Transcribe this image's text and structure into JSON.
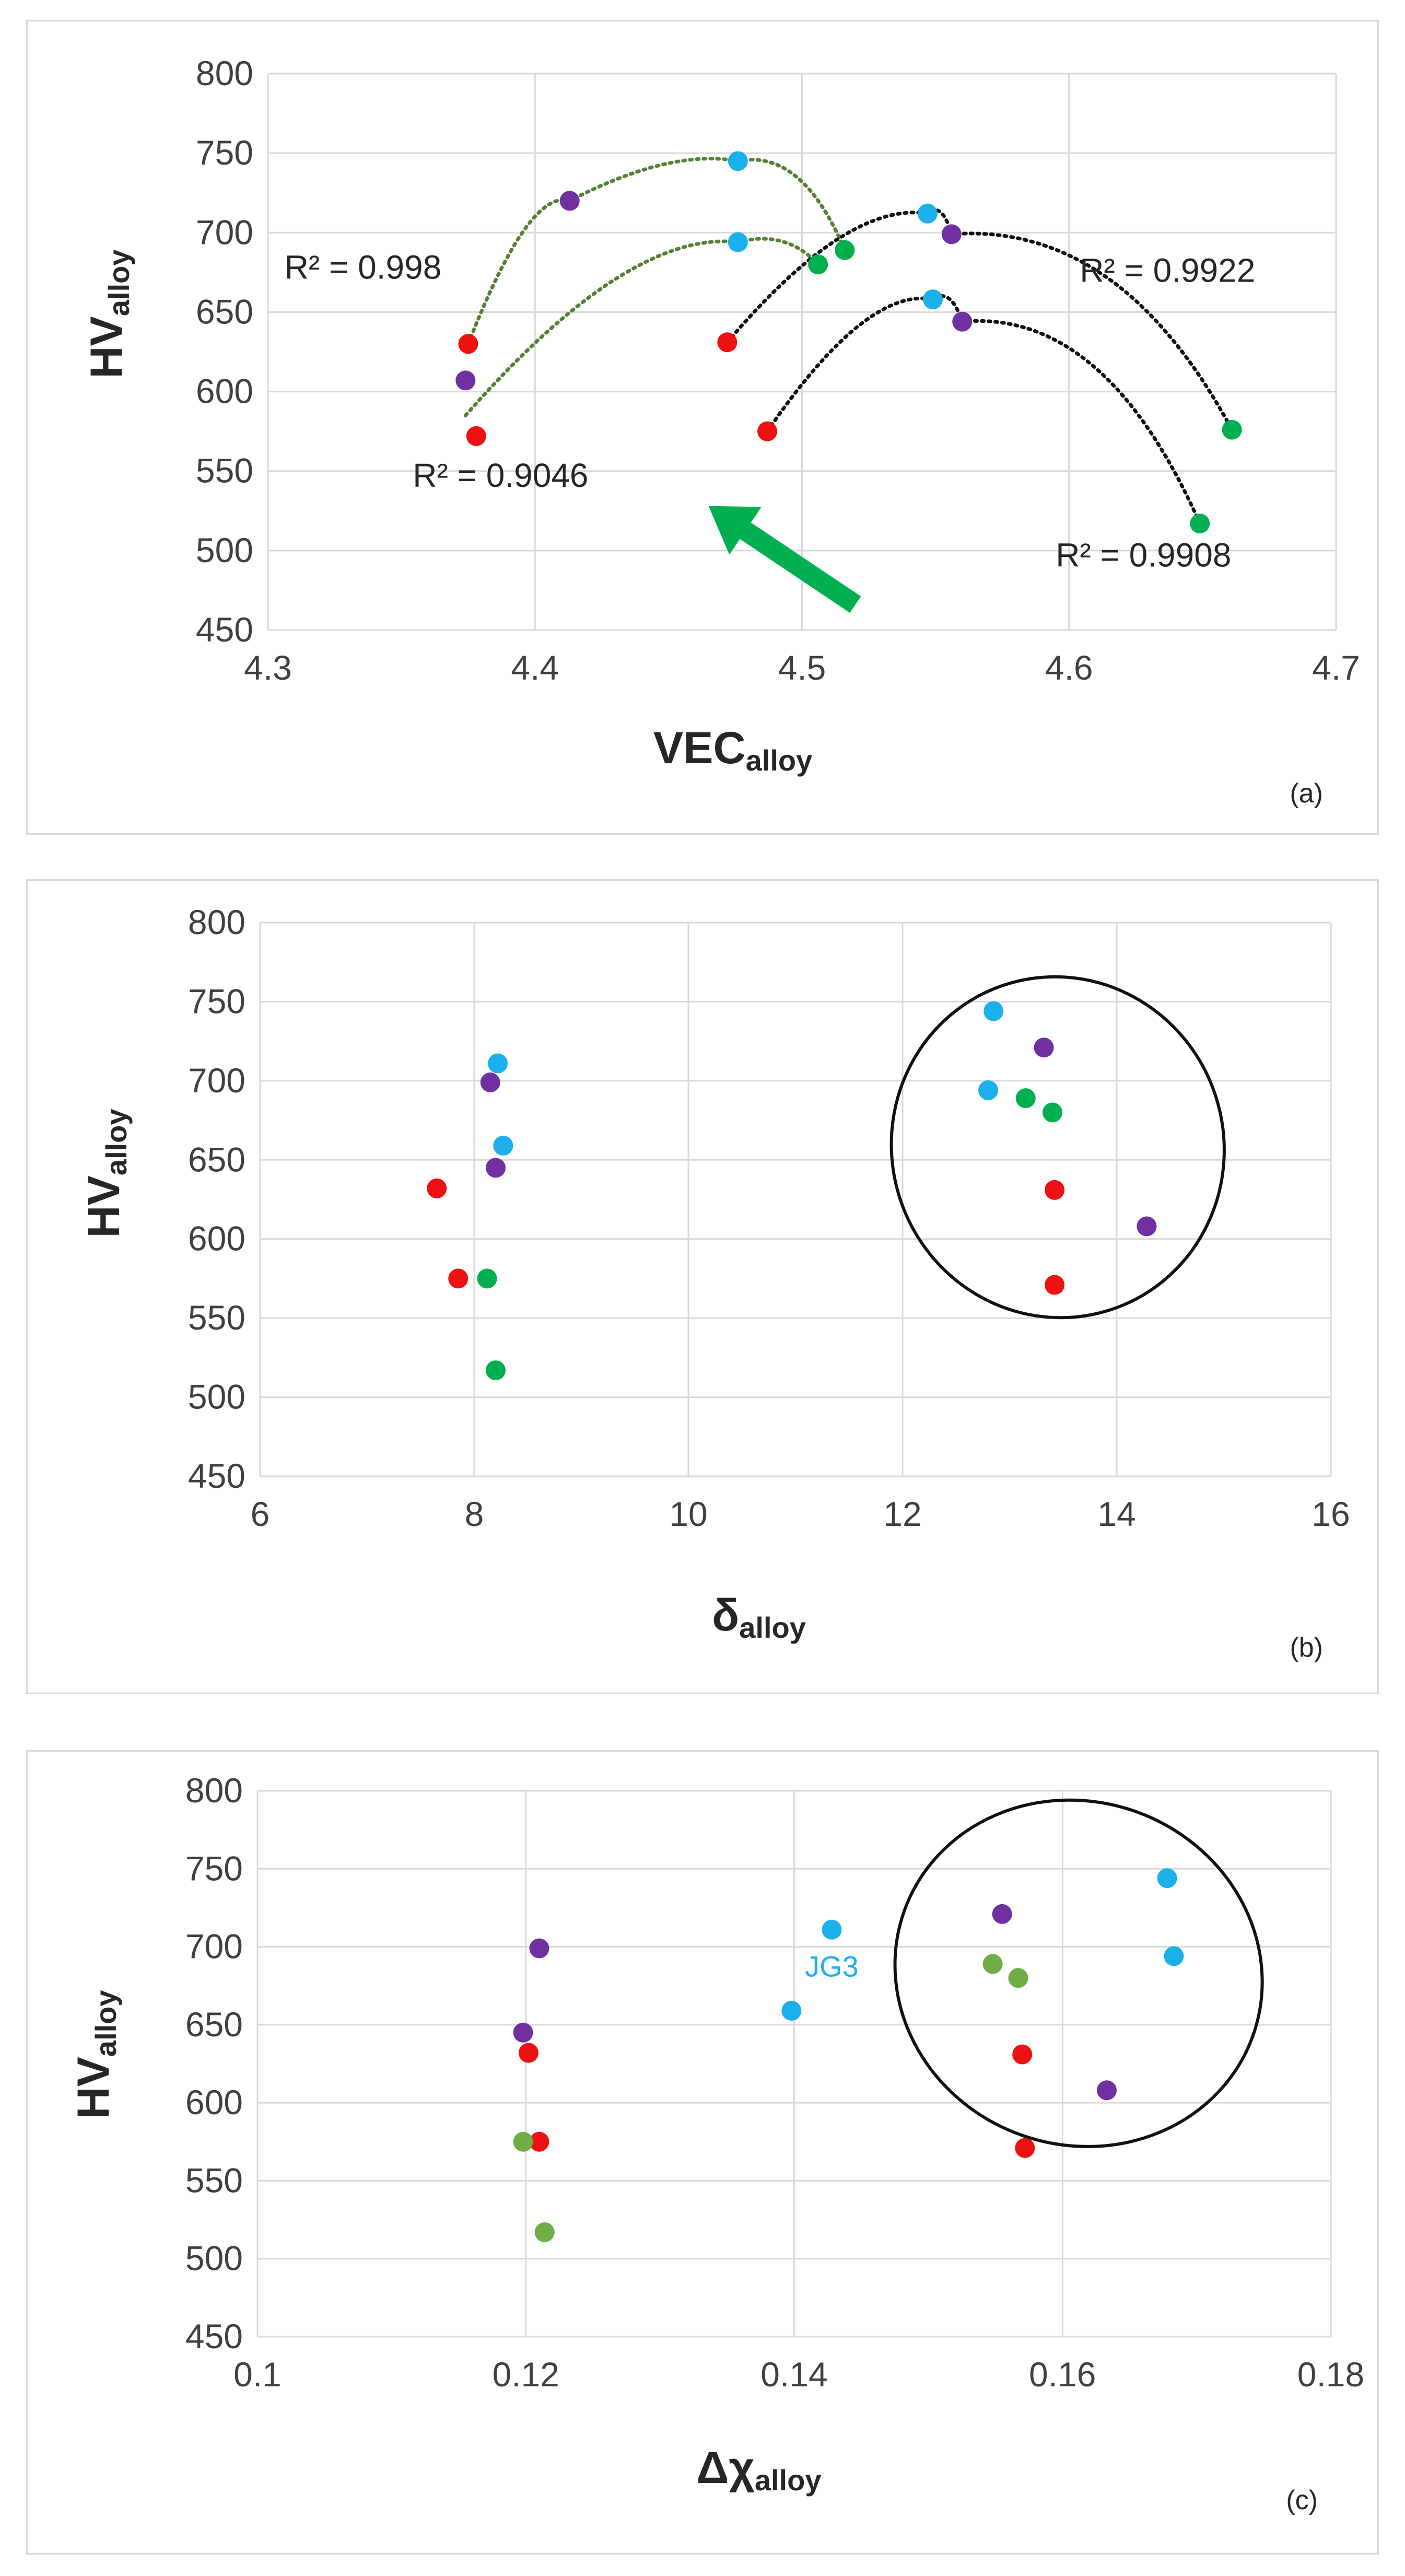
{
  "colors": {
    "red": "#ee1111",
    "purple": "#7030a0",
    "blue": "#1cb0ea",
    "green": "#00b050",
    "lightgreen": "#70ad47",
    "trend_green": "#548235",
    "trend_black": "#111111",
    "grid": "#d9d9d9",
    "arrow": "#00b050",
    "ellipse": "#111111"
  },
  "chart_data": [
    {
      "type": "scatter",
      "panel_label": "(a)",
      "xlabel": "VEC",
      "xlabel_sub": "alloy",
      "ylabel": "HV",
      "ylabel_sub": "alloy",
      "xlim": [
        4.3,
        4.7
      ],
      "ylim": [
        450,
        800
      ],
      "xticks": [
        "4.3",
        "4.4",
        "4.5",
        "4.6",
        "4.7"
      ],
      "yticks": [
        "450",
        "500",
        "550",
        "600",
        "650",
        "700",
        "750",
        "800"
      ],
      "grid": "vertical and horizontal",
      "points": [
        {
          "x": 4.375,
          "y": 630,
          "color": "red"
        },
        {
          "x": 4.378,
          "y": 572,
          "color": "red"
        },
        {
          "x": 4.472,
          "y": 631,
          "color": "red"
        },
        {
          "x": 4.487,
          "y": 575,
          "color": "red"
        },
        {
          "x": 4.374,
          "y": 607,
          "color": "purple"
        },
        {
          "x": 4.413,
          "y": 720,
          "color": "purple"
        },
        {
          "x": 4.556,
          "y": 699,
          "color": "purple"
        },
        {
          "x": 4.56,
          "y": 644,
          "color": "purple"
        },
        {
          "x": 4.476,
          "y": 745,
          "color": "blue"
        },
        {
          "x": 4.476,
          "y": 694,
          "color": "blue"
        },
        {
          "x": 4.547,
          "y": 712,
          "color": "blue"
        },
        {
          "x": 4.549,
          "y": 658,
          "color": "blue"
        },
        {
          "x": 4.506,
          "y": 680,
          "color": "green"
        },
        {
          "x": 4.516,
          "y": 689,
          "color": "green"
        },
        {
          "x": 4.661,
          "y": 576,
          "color": "green"
        },
        {
          "x": 4.649,
          "y": 517,
          "color": "green"
        }
      ],
      "trendlines": [
        {
          "color": "trend_green",
          "label": "R² = 0.998",
          "points": [
            [
              4.375,
              630
            ],
            [
              4.413,
              720
            ],
            [
              4.476,
              745
            ],
            [
              4.516,
              689
            ]
          ]
        },
        {
          "color": "trend_green",
          "label": "R² = 0.9046",
          "points": [
            [
              4.374,
              585
            ],
            [
              4.476,
              694
            ],
            [
              4.506,
              680
            ]
          ]
        },
        {
          "color": "trend_black",
          "label": "R² = 0.9922",
          "points": [
            [
              4.472,
              631
            ],
            [
              4.547,
              712
            ],
            [
              4.556,
              699
            ],
            [
              4.661,
              576
            ]
          ]
        },
        {
          "color": "trend_black",
          "label": "R² = 0.9908",
          "points": [
            [
              4.487,
              575
            ],
            [
              4.549,
              658
            ],
            [
              4.56,
              644
            ],
            [
              4.649,
              517
            ]
          ]
        }
      ],
      "arrow": {
        "from": [
          4.52,
          466
        ],
        "to": [
          4.465,
          528
        ],
        "color": "arrow"
      }
    },
    {
      "type": "scatter",
      "panel_label": "(b)",
      "xlabel": "δ",
      "xlabel_sub": "alloy",
      "ylabel": "HV",
      "ylabel_sub": "alloy",
      "xlim": [
        6,
        16
      ],
      "ylim": [
        450,
        800
      ],
      "xticks": [
        "6",
        "8",
        "10",
        "12",
        "14",
        "16"
      ],
      "yticks": [
        "450",
        "500",
        "550",
        "600",
        "650",
        "700",
        "750",
        "800"
      ],
      "grid": "vertical and horizontal",
      "points": [
        {
          "x": 7.65,
          "y": 632,
          "color": "red"
        },
        {
          "x": 7.85,
          "y": 575,
          "color": "red"
        },
        {
          "x": 13.42,
          "y": 631,
          "color": "red"
        },
        {
          "x": 13.42,
          "y": 571,
          "color": "red"
        },
        {
          "x": 8.15,
          "y": 699,
          "color": "purple"
        },
        {
          "x": 8.2,
          "y": 645,
          "color": "purple"
        },
        {
          "x": 13.32,
          "y": 721,
          "color": "purple"
        },
        {
          "x": 14.28,
          "y": 608,
          "color": "purple"
        },
        {
          "x": 8.22,
          "y": 711,
          "color": "blue"
        },
        {
          "x": 8.27,
          "y": 659,
          "color": "blue"
        },
        {
          "x": 12.85,
          "y": 744,
          "color": "blue"
        },
        {
          "x": 12.8,
          "y": 694,
          "color": "blue"
        },
        {
          "x": 8.12,
          "y": 575,
          "color": "green"
        },
        {
          "x": 8.2,
          "y": 517,
          "color": "green"
        },
        {
          "x": 13.15,
          "y": 689,
          "color": "green"
        },
        {
          "x": 13.4,
          "y": 680,
          "color": "green"
        }
      ],
      "ellipse": {
        "cx": 13.45,
        "cy": 658,
        "rx": 1.55,
        "ry": 108,
        "rotate_deg": -18
      }
    },
    {
      "type": "scatter",
      "panel_label": "(c)",
      "xlabel": "Δχ",
      "xlabel_sub": "alloy",
      "ylabel": "HV",
      "ylabel_sub": "alloy",
      "xlim": [
        0.1,
        0.18
      ],
      "ylim": [
        450,
        800
      ],
      "xticks": [
        "0.1",
        "0.12",
        "0.14",
        "0.16",
        "0.18"
      ],
      "yticks": [
        "450",
        "500",
        "550",
        "600",
        "650",
        "700",
        "750",
        "800"
      ],
      "grid": "vertical and horizontal",
      "points": [
        {
          "x": 0.1202,
          "y": 632,
          "color": "red"
        },
        {
          "x": 0.121,
          "y": 575,
          "color": "red"
        },
        {
          "x": 0.157,
          "y": 631,
          "color": "red"
        },
        {
          "x": 0.1572,
          "y": 571,
          "color": "red"
        },
        {
          "x": 0.121,
          "y": 699,
          "color": "purple"
        },
        {
          "x": 0.1198,
          "y": 645,
          "color": "purple"
        },
        {
          "x": 0.1555,
          "y": 721,
          "color": "purple"
        },
        {
          "x": 0.1633,
          "y": 608,
          "color": "purple"
        },
        {
          "x": 0.1428,
          "y": 711,
          "color": "blue",
          "label": "JG3"
        },
        {
          "x": 0.1398,
          "y": 659,
          "color": "blue"
        },
        {
          "x": 0.1678,
          "y": 744,
          "color": "blue"
        },
        {
          "x": 0.1683,
          "y": 694,
          "color": "blue"
        },
        {
          "x": 0.1198,
          "y": 575,
          "color": "lightgreen"
        },
        {
          "x": 0.1214,
          "y": 517,
          "color": "lightgreen"
        },
        {
          "x": 0.1548,
          "y": 689,
          "color": "lightgreen"
        },
        {
          "x": 0.1567,
          "y": 680,
          "color": "lightgreen"
        }
      ],
      "ellipse": {
        "cx": 0.1612,
        "cy": 683,
        "rx": 0.0138,
        "ry": 110,
        "rotate_deg": 20
      }
    }
  ]
}
